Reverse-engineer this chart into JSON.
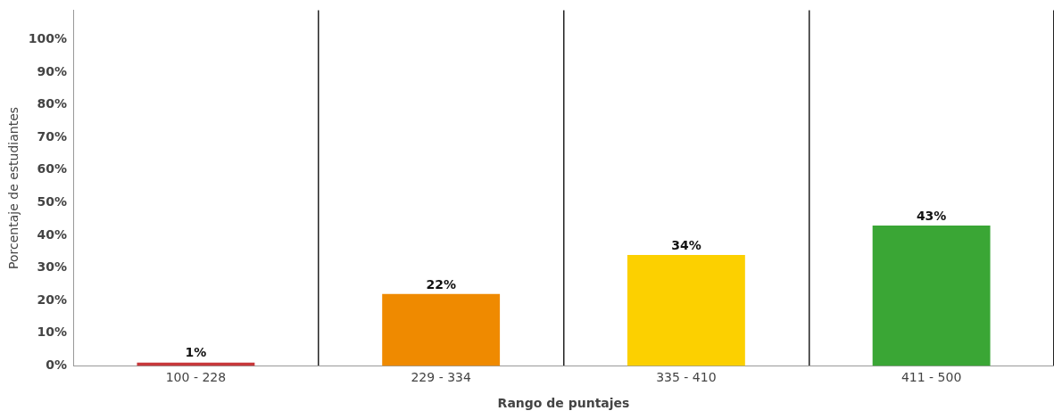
{
  "chart_data": {
    "type": "bar",
    "xlabel": "Rango de puntajes",
    "ylabel": "Porcentaje de estudiantes",
    "categories": [
      "100 - 228",
      "229 - 334",
      "335 - 410",
      "411 - 500"
    ],
    "values": [
      1,
      22,
      34,
      43
    ],
    "colors": [
      "#c8373a",
      "#ef8a00",
      "#fcd000",
      "#3aa635"
    ],
    "value_labels": [
      "1%",
      "22%",
      "34%",
      "43%"
    ],
    "ylim": [
      0,
      109
    ],
    "yticks": [
      {
        "value": 0,
        "label": "0%"
      },
      {
        "value": 10,
        "label": "10%"
      },
      {
        "value": 20,
        "label": "20%"
      },
      {
        "value": 30,
        "label": "30%"
      },
      {
        "value": 40,
        "label": "40%"
      },
      {
        "value": 50,
        "label": "50%"
      },
      {
        "value": 60,
        "label": "60%"
      },
      {
        "value": 70,
        "label": "70%"
      },
      {
        "value": 80,
        "label": "80%"
      },
      {
        "value": 90,
        "label": "90%"
      },
      {
        "value": 100,
        "label": "100%"
      }
    ],
    "grid": "x",
    "legend": false
  }
}
